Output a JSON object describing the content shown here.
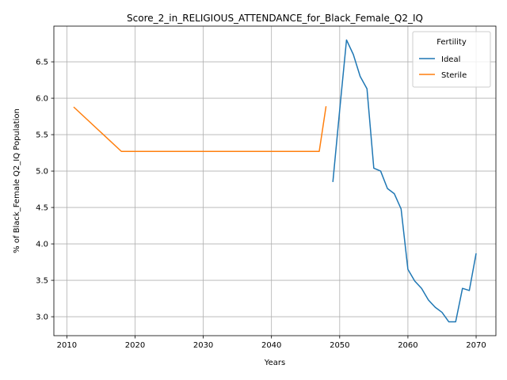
{
  "chart_data": {
    "type": "line",
    "title": "Score_2_in_RELIGIOUS_ATTENDANCE_for_Black_Female_Q2_IQ",
    "xlabel": "Years",
    "ylabel": "% of Black_Female Q2_IQ Population",
    "xlim": [
      2008.1,
      2072.9
    ],
    "ylim": [
      2.74,
      6.99
    ],
    "xticks": [
      2010,
      2020,
      2030,
      2040,
      2050,
      2060,
      2070
    ],
    "yticks": [
      3.0,
      3.5,
      4.0,
      4.5,
      5.0,
      5.5,
      6.0,
      6.5
    ],
    "xtick_labels": [
      "2010",
      "2020",
      "2030",
      "2040",
      "2050",
      "2060",
      "2070"
    ],
    "ytick_labels": [
      "3.0",
      "3.5",
      "4.0",
      "4.5",
      "5.0",
      "5.5",
      "6.0",
      "6.5"
    ],
    "grid": true,
    "legend": {
      "title": "Fertility",
      "position": "top-right"
    },
    "series": [
      {
        "name": "Ideal",
        "color": "#1f77b4",
        "x": [
          2049,
          2050,
          2051,
          2052,
          2053,
          2054,
          2055,
          2056,
          2057,
          2058,
          2059,
          2060,
          2061,
          2062,
          2063,
          2064,
          2065,
          2066,
          2067,
          2068,
          2069,
          2070
        ],
        "y": [
          4.85,
          5.84,
          6.8,
          6.6,
          6.3,
          6.13,
          5.04,
          5.0,
          4.76,
          4.69,
          4.48,
          3.65,
          3.49,
          3.39,
          3.23,
          3.13,
          3.06,
          2.93,
          2.93,
          3.39,
          3.36,
          3.87
        ]
      },
      {
        "name": "Sterile",
        "color": "#ff7f0e",
        "x": [
          2011,
          2018,
          2047,
          2048
        ],
        "y": [
          5.88,
          5.27,
          5.27,
          5.89
        ]
      }
    ]
  }
}
